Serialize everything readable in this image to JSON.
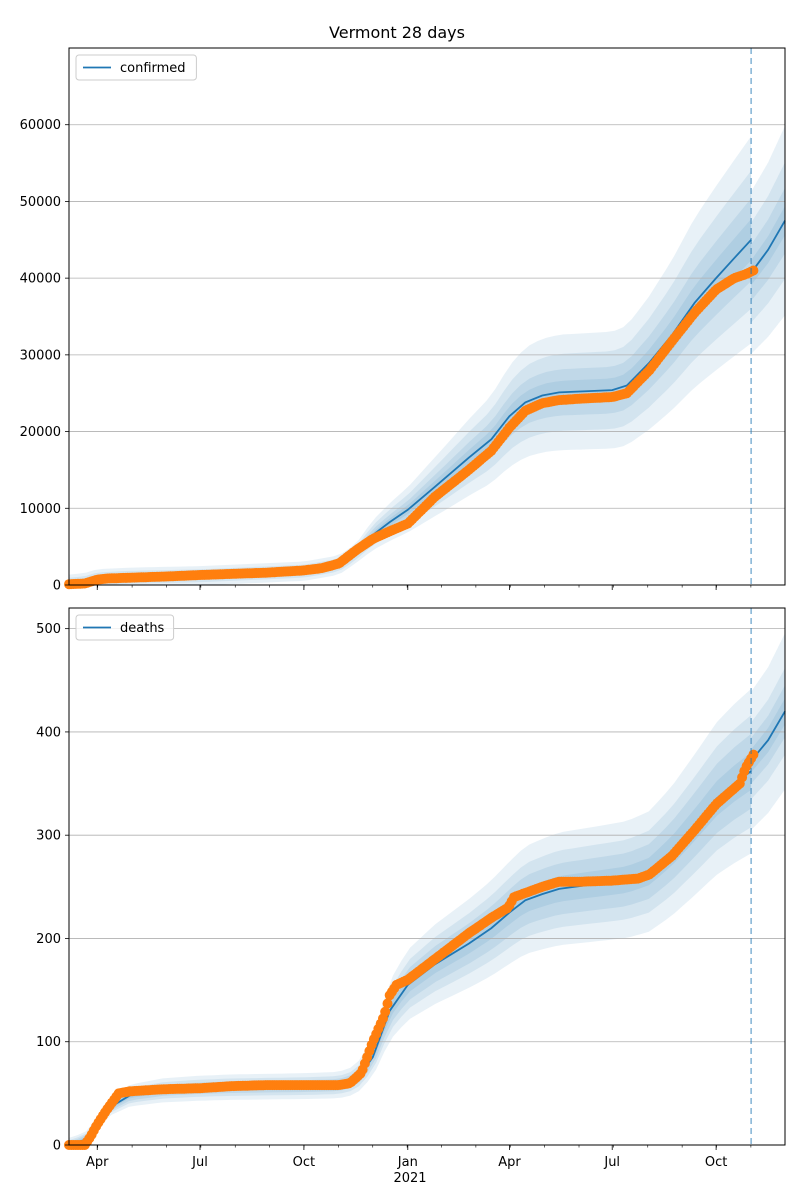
{
  "title": "Vermont 28 days",
  "colors": {
    "model": "#1f77b4",
    "observed": "#ff7f0e",
    "band": "#1f77b4",
    "grid": "#b0b0b0"
  },
  "x_ticks": [
    {
      "label": "Apr",
      "day": 31
    },
    {
      "label": "Jul",
      "day": 122
    },
    {
      "label": "Oct",
      "day": 214
    },
    {
      "label": "Jan",
      "day": 306
    },
    {
      "label": "Apr",
      "day": 396
    },
    {
      "label": "Jul",
      "day": 487
    },
    {
      "label": "Oct",
      "day": 579
    }
  ],
  "year_label": "2021",
  "xlim_days": [
    6,
    640
  ],
  "forecast_day": 610,
  "chart_data": [
    {
      "type": "line",
      "legend": "confirmed",
      "legend_position": "upper-left",
      "grid": "horizontal",
      "ylim": [
        0,
        70000
      ],
      "yticks": [
        0,
        10000,
        20000,
        30000,
        40000,
        50000,
        60000
      ],
      "model": {
        "day": [
          6,
          20,
          31,
          60,
          122,
          214,
          245,
          260,
          275,
          290,
          306,
          330,
          360,
          380,
          396,
          410,
          425,
          440,
          487,
          500,
          520,
          540,
          560,
          579,
          595,
          610
        ],
        "value": [
          100,
          300,
          800,
          1000,
          1200,
          1800,
          2600,
          4100,
          6500,
          8200,
          9800,
          12800,
          16600,
          19000,
          22000,
          23800,
          24700,
          25100,
          25400,
          26000,
          29000,
          32600,
          36800,
          40000,
          42600,
          45000
        ]
      },
      "band_half_widths": [
        0.06,
        0.12,
        0.2,
        0.3
      ],
      "future": {
        "day": [
          610,
          625,
          640
        ],
        "value": [
          40700,
          43700,
          47500
        ]
      },
      "future_band_half_widths": [
        0.04,
        0.09,
        0.16,
        0.26
      ],
      "observed": {
        "day": [
          6,
          20,
          31,
          40,
          60,
          90,
          122,
          150,
          180,
          214,
          230,
          245,
          260,
          275,
          290,
          306,
          330,
          360,
          380,
          396,
          410,
          425,
          440,
          460,
          487,
          500,
          520,
          540,
          560,
          579,
          595,
          605,
          612
        ],
        "value": [
          100,
          200,
          700,
          850,
          950,
          1100,
          1300,
          1450,
          1600,
          1900,
          2200,
          2800,
          4500,
          6000,
          7000,
          8000,
          11500,
          15000,
          17500,
          20500,
          22700,
          23700,
          24100,
          24300,
          24500,
          25000,
          28000,
          31800,
          35500,
          38500,
          40000,
          40500,
          41000
        ]
      }
    },
    {
      "type": "line",
      "legend": "deaths",
      "legend_position": "upper-left",
      "grid": "horizontal",
      "ylim": [
        0,
        520
      ],
      "yticks": [
        0,
        100,
        200,
        300,
        400,
        500
      ],
      "model": {
        "day": [
          6,
          20,
          31,
          40,
          60,
          90,
          122,
          150,
          214,
          245,
          260,
          275,
          290,
          306,
          330,
          360,
          380,
          396,
          410,
          425,
          440,
          487,
          500,
          520,
          540,
          560,
          579,
          595,
          610
        ],
        "value": [
          0,
          5,
          20,
          35,
          48,
          53,
          55,
          56,
          57,
          58,
          63,
          85,
          130,
          155,
          175,
          195,
          210,
          225,
          237,
          243,
          248,
          255,
          257,
          265,
          285,
          310,
          335,
          350,
          362
        ]
      },
      "band_half_widths": [
        0.05,
        0.1,
        0.15,
        0.22
      ],
      "future": {
        "day": [
          610,
          625,
          640
        ],
        "value": [
          372,
          392,
          420
        ]
      },
      "future_band_half_widths": [
        0.03,
        0.06,
        0.1,
        0.18
      ],
      "observed": {
        "day": [
          6,
          20,
          25,
          31,
          40,
          50,
          60,
          90,
          122,
          150,
          180,
          214,
          245,
          255,
          265,
          275,
          285,
          290,
          296,
          306,
          330,
          360,
          380,
          395,
          400,
          425,
          440,
          460,
          487,
          510,
          520,
          540,
          560,
          579,
          600,
          605,
          612
        ],
        "value": [
          0,
          0,
          8,
          20,
          35,
          50,
          52,
          54,
          55,
          57,
          58,
          58,
          58,
          60,
          70,
          100,
          125,
          145,
          155,
          160,
          180,
          205,
          220,
          230,
          240,
          250,
          255,
          255,
          256,
          258,
          262,
          280,
          305,
          330,
          350,
          365,
          378
        ]
      }
    }
  ]
}
